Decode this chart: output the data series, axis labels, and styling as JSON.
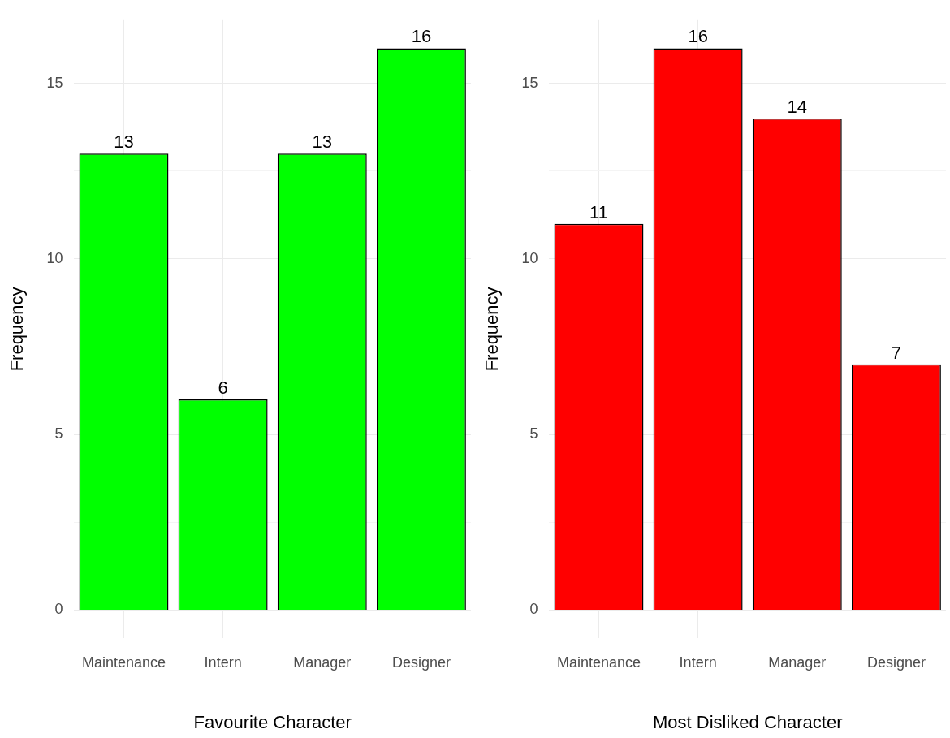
{
  "chart_data": [
    {
      "type": "bar",
      "xlabel": "Favourite Character",
      "ylabel": "Frequency",
      "categories": [
        "Maintenance",
        "Intern",
        "Manager",
        "Designer"
      ],
      "values": [
        13,
        6,
        13,
        16
      ],
      "color": "#00ff00",
      "ylim": [
        -0.8,
        16.8
      ],
      "yticks": [
        0,
        {
          "value": 2.5,
          "label": null
        },
        5,
        {
          "value": 7.5,
          "label": null
        },
        10,
        {
          "value": 12.5,
          "label": null
        },
        15
      ],
      "grid": true,
      "data_labels": true,
      "legend": false
    },
    {
      "type": "bar",
      "xlabel": "Most Disliked Character",
      "ylabel": "Frequency",
      "categories": [
        "Maintenance",
        "Intern",
        "Manager",
        "Designer"
      ],
      "values": [
        11,
        16,
        14,
        7
      ],
      "color": "#ff0000",
      "ylim": [
        -0.8,
        16.8
      ],
      "yticks": [
        0,
        {
          "value": 2.5,
          "label": null
        },
        5,
        {
          "value": 7.5,
          "label": null
        },
        10,
        {
          "value": 12.5,
          "label": null
        },
        15
      ],
      "grid": true,
      "data_labels": true,
      "legend": false
    }
  ]
}
